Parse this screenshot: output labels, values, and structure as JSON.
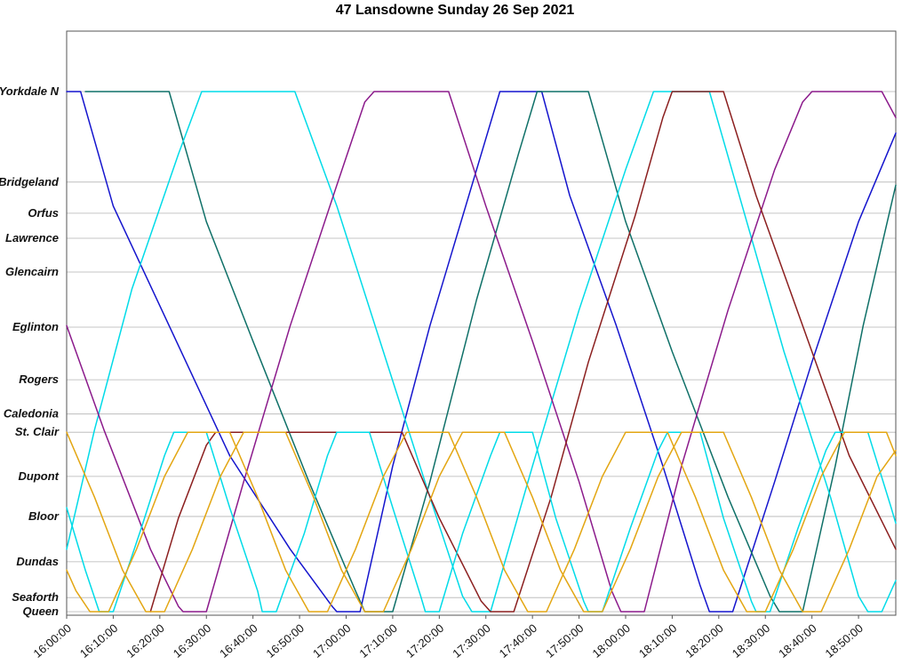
{
  "chart_data": {
    "type": "line",
    "title": "47 Lansdowne Sunday 26 Sep 2021",
    "xlabel": "",
    "ylabel": "",
    "legend_position": "none",
    "grid": "horizontal",
    "x_axis": {
      "unit": "time of day",
      "tick_labels": [
        "16:00:00",
        "16:10:00",
        "16:20:00",
        "16:30:00",
        "16:40:00",
        "16:50:00",
        "17:00:00",
        "17:10:00",
        "17:20:00",
        "17:30:00",
        "17:40:00",
        "17:50:00",
        "18:00:00",
        "18:10:00",
        "18:20:00",
        "18:30:00",
        "18:40:00",
        "18:50:00"
      ],
      "tick_minutes": [
        0,
        10,
        20,
        30,
        40,
        50,
        60,
        70,
        80,
        90,
        100,
        110,
        120,
        130,
        140,
        150,
        160,
        170
      ],
      "range_minutes": [
        0,
        178
      ]
    },
    "y_axis": {
      "unit": "route position (0 = Queen, 100 = Yorkdale N)",
      "range": [
        0,
        100
      ],
      "stops": [
        {
          "name": "Yorkdale N",
          "pos": 100
        },
        {
          "name": "Bridgeland",
          "pos": 82.6
        },
        {
          "name": "Orfus",
          "pos": 76.6
        },
        {
          "name": "Lawrence",
          "pos": 71.8
        },
        {
          "name": "Glencairn",
          "pos": 65.3
        },
        {
          "name": "Eglinton",
          "pos": 54.7
        },
        {
          "name": "Rogers",
          "pos": 44.6
        },
        {
          "name": "Caledonia",
          "pos": 38.0
        },
        {
          "name": "St. Clair",
          "pos": 34.5
        },
        {
          "name": "Dupont",
          "pos": 26.0
        },
        {
          "name": "Bloor",
          "pos": 18.3
        },
        {
          "name": "Dundas",
          "pos": 9.6
        },
        {
          "name": "Seaforth",
          "pos": 2.7
        },
        {
          "name": "Queen",
          "pos": 0
        }
      ]
    },
    "series": [
      {
        "name": "vehicle-blue",
        "color": "#1414cd",
        "points": [
          [
            0,
            100
          ],
          [
            3,
            100
          ],
          [
            10,
            78
          ],
          [
            22,
            55
          ],
          [
            35,
            30
          ],
          [
            48,
            12
          ],
          [
            57,
            1
          ],
          [
            58,
            0
          ],
          [
            63,
            0
          ],
          [
            70,
            28
          ],
          [
            78,
            55
          ],
          [
            88,
            85
          ],
          [
            93,
            100
          ],
          [
            102,
            100
          ],
          [
            108,
            80
          ],
          [
            118,
            55
          ],
          [
            128,
            28
          ],
          [
            136,
            5
          ],
          [
            138,
            0
          ],
          [
            143,
            0
          ],
          [
            152,
            25
          ],
          [
            160,
            48
          ],
          [
            170,
            75
          ],
          [
            178,
            92
          ]
        ]
      },
      {
        "name": "vehicle-teal",
        "color": "#0f7068",
        "points": [
          [
            4,
            100
          ],
          [
            22,
            100
          ],
          [
            30,
            75
          ],
          [
            40,
            52
          ],
          [
            52,
            25
          ],
          [
            62,
            4
          ],
          [
            64,
            0
          ],
          [
            70,
            0
          ],
          [
            78,
            25
          ],
          [
            88,
            60
          ],
          [
            97,
            88
          ],
          [
            101,
            100
          ],
          [
            112,
            100
          ],
          [
            120,
            75
          ],
          [
            130,
            50
          ],
          [
            142,
            22
          ],
          [
            151,
            3
          ],
          [
            153,
            0
          ],
          [
            158,
            0
          ],
          [
            165,
            28
          ],
          [
            171,
            55
          ],
          [
            178,
            82
          ]
        ]
      },
      {
        "name": "vehicle-cyan",
        "color": "#00dbe8",
        "points": [
          [
            0,
            12
          ],
          [
            6,
            35
          ],
          [
            14,
            62
          ],
          [
            24,
            88
          ],
          [
            29,
            100
          ],
          [
            49,
            100
          ],
          [
            58,
            78
          ],
          [
            68,
            50
          ],
          [
            78,
            22
          ],
          [
            85,
            3
          ],
          [
            87,
            0
          ],
          [
            91,
            0
          ],
          [
            100,
            28
          ],
          [
            110,
            58
          ],
          [
            120,
            85
          ],
          [
            126,
            100
          ],
          [
            138,
            100
          ],
          [
            146,
            75
          ],
          [
            154,
            50
          ],
          [
            164,
            22
          ],
          [
            170,
            3
          ],
          [
            172,
            0
          ],
          [
            175,
            0
          ],
          [
            178,
            6
          ]
        ]
      },
      {
        "name": "vehicle-purple",
        "color": "#8b1a8b",
        "points": [
          [
            0,
            55
          ],
          [
            8,
            35
          ],
          [
            18,
            12
          ],
          [
            24,
            1
          ],
          [
            25,
            0
          ],
          [
            30,
            0
          ],
          [
            38,
            25
          ],
          [
            48,
            55
          ],
          [
            58,
            82
          ],
          [
            64,
            98
          ],
          [
            66,
            100
          ],
          [
            82,
            100
          ],
          [
            90,
            78
          ],
          [
            100,
            52
          ],
          [
            110,
            25
          ],
          [
            117,
            4
          ],
          [
            119,
            0
          ],
          [
            124,
            0
          ],
          [
            132,
            28
          ],
          [
            142,
            58
          ],
          [
            152,
            85
          ],
          [
            158,
            98
          ],
          [
            160,
            100
          ],
          [
            175,
            100
          ],
          [
            178,
            95
          ]
        ]
      },
      {
        "name": "vehicle-maroon",
        "color": "#8b1f1f",
        "points": [
          [
            18,
            0
          ],
          [
            24,
            18
          ],
          [
            30,
            32
          ],
          [
            32,
            34.5
          ],
          [
            72,
            34.5
          ],
          [
            80,
            18
          ],
          [
            89,
            2
          ],
          [
            91,
            0
          ],
          [
            96,
            0
          ],
          [
            104,
            22
          ],
          [
            112,
            48
          ],
          [
            122,
            76
          ],
          [
            128,
            95
          ],
          [
            130,
            100
          ],
          [
            141,
            100
          ],
          [
            148,
            80
          ],
          [
            158,
            55
          ],
          [
            168,
            30
          ],
          [
            178,
            12
          ]
        ]
      },
      {
        "name": "vehicle-cyan-shortturn",
        "color": "#00dbe8",
        "points": [
          [
            0,
            20
          ],
          [
            4,
            8
          ],
          [
            7,
            0
          ],
          [
            10,
            0
          ],
          [
            16,
            16
          ],
          [
            21,
            30
          ],
          [
            23,
            34.5
          ],
          [
            30,
            34.5
          ],
          [
            35,
            20
          ],
          [
            41,
            4
          ],
          [
            42,
            0
          ],
          [
            45,
            0
          ],
          [
            51,
            15
          ],
          [
            56,
            30
          ],
          [
            58,
            34.5
          ],
          [
            65,
            34.5
          ],
          [
            70,
            20
          ],
          [
            76,
            3
          ],
          [
            77,
            0
          ],
          [
            80,
            0
          ],
          [
            85,
            15
          ],
          [
            91,
            30
          ],
          [
            93,
            34.5
          ],
          [
            100,
            34.5
          ],
          [
            105,
            18
          ],
          [
            111,
            2
          ],
          [
            112,
            0
          ],
          [
            115,
            0
          ],
          [
            121,
            16
          ],
          [
            127,
            31
          ],
          [
            129,
            34.5
          ],
          [
            136,
            34.5
          ],
          [
            141,
            18
          ],
          [
            147,
            2
          ],
          [
            148,
            0
          ],
          [
            151,
            0
          ],
          [
            157,
            16
          ],
          [
            163,
            31
          ],
          [
            165,
            34.5
          ],
          [
            172,
            34.5
          ],
          [
            177,
            20
          ],
          [
            178,
            17
          ]
        ]
      },
      {
        "name": "vehicle-orange-1",
        "color": "#e3a612",
        "points": [
          [
            0,
            34.5
          ],
          [
            6,
            22
          ],
          [
            12,
            8
          ],
          [
            17,
            0
          ],
          [
            21,
            0
          ],
          [
            27,
            12
          ],
          [
            33,
            26
          ],
          [
            38,
            34.5
          ],
          [
            47,
            34.5
          ],
          [
            53,
            22
          ],
          [
            59,
            8
          ],
          [
            64,
            0
          ],
          [
            68,
            0
          ],
          [
            74,
            12
          ],
          [
            80,
            26
          ],
          [
            85,
            34.5
          ],
          [
            94,
            34.5
          ],
          [
            100,
            22
          ],
          [
            106,
            8
          ],
          [
            111,
            0
          ],
          [
            115,
            0
          ],
          [
            121,
            12
          ],
          [
            127,
            26
          ],
          [
            132,
            34.5
          ],
          [
            141,
            34.5
          ],
          [
            147,
            22
          ],
          [
            153,
            8
          ],
          [
            158,
            0
          ],
          [
            162,
            0
          ],
          [
            168,
            12
          ],
          [
            174,
            26
          ],
          [
            178,
            31
          ]
        ]
      },
      {
        "name": "vehicle-orange-2",
        "color": "#e3a612",
        "points": [
          [
            0,
            8
          ],
          [
            2,
            4
          ],
          [
            5,
            0
          ],
          [
            9,
            0
          ],
          [
            15,
            12
          ],
          [
            21,
            26
          ],
          [
            26,
            34.5
          ],
          [
            35,
            34.5
          ],
          [
            41,
            22
          ],
          [
            47,
            8
          ],
          [
            52,
            0
          ],
          [
            56,
            0
          ],
          [
            62,
            12
          ],
          [
            68,
            26
          ],
          [
            73,
            34.5
          ],
          [
            82,
            34.5
          ],
          [
            88,
            22
          ],
          [
            94,
            8
          ],
          [
            99,
            0
          ],
          [
            103,
            0
          ],
          [
            109,
            12
          ],
          [
            115,
            26
          ],
          [
            120,
            34.5
          ],
          [
            129,
            34.5
          ],
          [
            135,
            22
          ],
          [
            141,
            8
          ],
          [
            146,
            0
          ],
          [
            150,
            0
          ],
          [
            156,
            12
          ],
          [
            162,
            26
          ],
          [
            167,
            34.5
          ],
          [
            176,
            34.5
          ],
          [
            178,
            30
          ]
        ]
      }
    ]
  }
}
